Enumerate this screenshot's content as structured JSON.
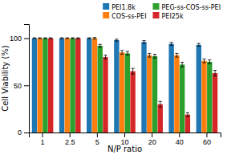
{
  "chart_data": {
    "type": "bar",
    "categories": [
      "1",
      "2.5",
      "5",
      "10",
      "20",
      "40",
      "60"
    ],
    "series": [
      {
        "name": "PEI1.8k",
        "values": [
          100,
          100,
          100,
          98,
          96,
          94,
          93
        ],
        "errors": [
          0.5,
          0.5,
          0.5,
          1.0,
          1.5,
          1.5,
          1.5
        ]
      },
      {
        "name": "COS-ss-PEI",
        "values": [
          100,
          100,
          100,
          85,
          82,
          82,
          76
        ],
        "errors": [
          0.5,
          0.5,
          0.8,
          2.0,
          2.0,
          2.0,
          2.0
        ]
      },
      {
        "name": "PEG-ss-COS-ss-PEI",
        "values": [
          100,
          100,
          92,
          84,
          81,
          72,
          75
        ],
        "errors": [
          0.5,
          0.5,
          1.5,
          2.0,
          2.0,
          2.5,
          2.0
        ]
      },
      {
        "name": "PEI25k",
        "values": [
          100,
          100,
          80,
          65,
          30,
          19,
          63
        ],
        "errors": [
          0.5,
          0.5,
          2.0,
          3.0,
          3.0,
          2.0,
          3.0
        ]
      }
    ],
    "xlabel": "N/P ratio",
    "ylabel": "Cell Viability (%)",
    "ylim": [
      0,
      115
    ],
    "yticks": [
      0,
      50,
      100
    ],
    "legend": "upper right",
    "grid": false
  }
}
